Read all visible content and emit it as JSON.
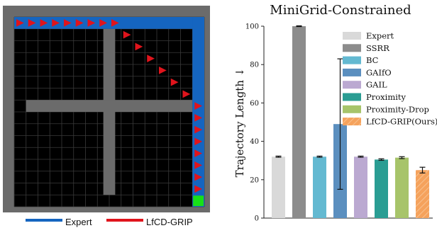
{
  "maze_legend": {
    "items": [
      {
        "label": "Expert",
        "color": "#1565c0"
      },
      {
        "label": "LfCD-GRIP",
        "color": "#e0141c"
      }
    ]
  },
  "maze": {
    "grid_size": 16,
    "colors": {
      "border": "#6b6b6b",
      "floor": "#000000",
      "grid_line": "#3a3a3a",
      "wall": "#6b6b6b",
      "expert_path": "#1565c0",
      "agent_marker": "#e0141c",
      "goal": "#18e018"
    }
  },
  "chart_data": {
    "type": "bar",
    "title": "MiniGrid-Constrained",
    "xlabel": "",
    "ylabel": "Trajectory Length ↓",
    "ylim": [
      0,
      100
    ],
    "yticks": [
      0,
      20,
      40,
      60,
      80,
      100
    ],
    "grid": false,
    "legend_position": "upper right",
    "series": [
      {
        "name": "Expert",
        "value": 32,
        "err": 0.3,
        "color": "#d9d9d9",
        "hatch": false
      },
      {
        "name": "SSRR",
        "value": 100,
        "err": 0.2,
        "color": "#8c8c8c",
        "hatch": false
      },
      {
        "name": "BC",
        "value": 32,
        "err": 0.3,
        "color": "#63b9d1",
        "hatch": false
      },
      {
        "name": "GAIfO",
        "value": 49,
        "err": 34,
        "color": "#5b8fbf",
        "hatch": false
      },
      {
        "name": "GAIL",
        "value": 32,
        "err": 0.3,
        "color": "#bba9d1",
        "hatch": false
      },
      {
        "name": "Proximity",
        "value": 30.5,
        "err": 0.4,
        "color": "#2a9d93",
        "hatch": false
      },
      {
        "name": "Proximity-Drop",
        "value": 31.5,
        "err": 0.5,
        "color": "#a7c46a",
        "hatch": false
      },
      {
        "name": "LfCD-GRIP(Ours)",
        "value": 25,
        "err": 1.5,
        "color": "#f5a25c",
        "hatch": true
      }
    ]
  }
}
